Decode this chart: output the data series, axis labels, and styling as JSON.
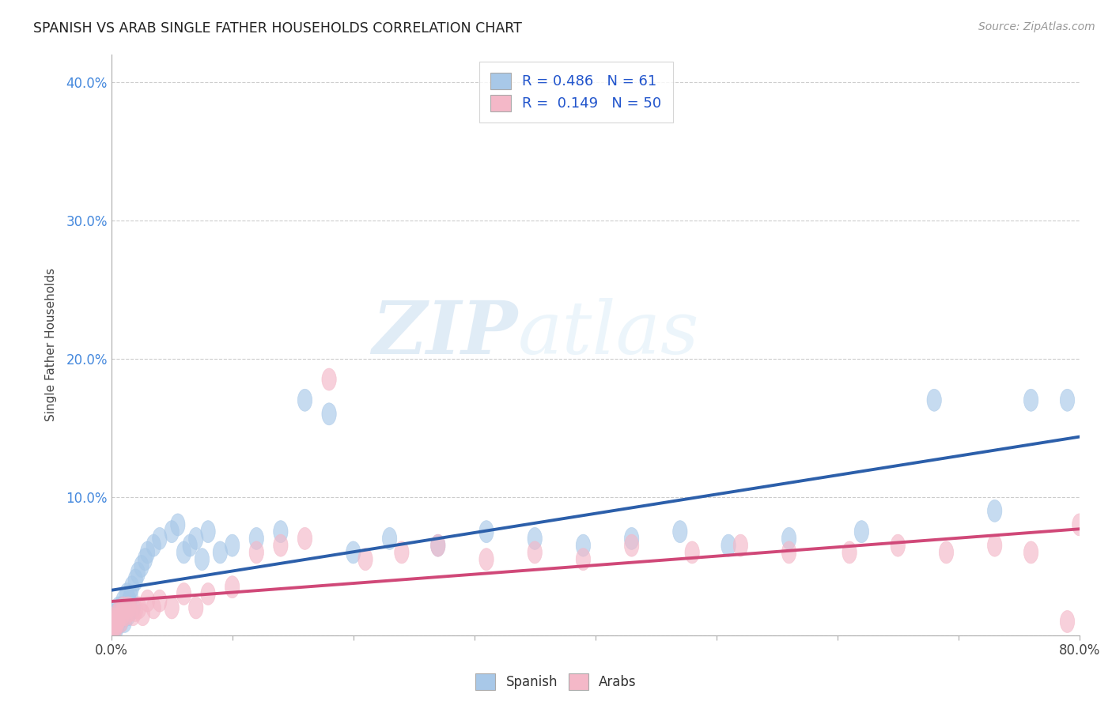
{
  "title": "SPANISH VS ARAB SINGLE FATHER HOUSEHOLDS CORRELATION CHART",
  "source": "Source: ZipAtlas.com",
  "ylabel": "Single Father Households",
  "xlim": [
    0.0,
    0.8
  ],
  "ylim": [
    0.0,
    0.42
  ],
  "spanish_R": 0.486,
  "spanish_N": 61,
  "arab_R": 0.149,
  "arab_N": 50,
  "blue_color": "#a8c8e8",
  "pink_color": "#f4b8c8",
  "blue_line_color": "#2c5faa",
  "pink_line_color": "#d04878",
  "watermark_zip": "ZIP",
  "watermark_atlas": "atlas",
  "spanish_x": [
    0.001,
    0.002,
    0.002,
    0.003,
    0.003,
    0.004,
    0.004,
    0.005,
    0.005,
    0.006,
    0.006,
    0.007,
    0.007,
    0.008,
    0.008,
    0.009,
    0.01,
    0.01,
    0.011,
    0.012,
    0.013,
    0.014,
    0.015,
    0.016,
    0.017,
    0.018,
    0.02,
    0.022,
    0.025,
    0.028,
    0.03,
    0.035,
    0.04,
    0.05,
    0.055,
    0.06,
    0.065,
    0.07,
    0.075,
    0.08,
    0.09,
    0.1,
    0.12,
    0.14,
    0.16,
    0.18,
    0.2,
    0.23,
    0.27,
    0.31,
    0.35,
    0.39,
    0.43,
    0.47,
    0.51,
    0.56,
    0.62,
    0.68,
    0.73,
    0.76,
    0.79
  ],
  "spanish_y": [
    0.005,
    0.005,
    0.01,
    0.008,
    0.015,
    0.005,
    0.01,
    0.008,
    0.015,
    0.01,
    0.02,
    0.012,
    0.018,
    0.01,
    0.015,
    0.02,
    0.015,
    0.025,
    0.01,
    0.02,
    0.03,
    0.015,
    0.025,
    0.028,
    0.035,
    0.02,
    0.04,
    0.045,
    0.05,
    0.055,
    0.06,
    0.065,
    0.07,
    0.075,
    0.08,
    0.06,
    0.065,
    0.07,
    0.055,
    0.075,
    0.06,
    0.065,
    0.07,
    0.075,
    0.17,
    0.16,
    0.06,
    0.07,
    0.065,
    0.075,
    0.07,
    0.065,
    0.07,
    0.075,
    0.065,
    0.07,
    0.075,
    0.17,
    0.09,
    0.17,
    0.17
  ],
  "arab_x": [
    0.001,
    0.002,
    0.002,
    0.003,
    0.003,
    0.004,
    0.005,
    0.005,
    0.006,
    0.007,
    0.008,
    0.009,
    0.01,
    0.012,
    0.014,
    0.016,
    0.018,
    0.02,
    0.023,
    0.026,
    0.03,
    0.035,
    0.04,
    0.05,
    0.06,
    0.07,
    0.08,
    0.1,
    0.12,
    0.14,
    0.16,
    0.18,
    0.21,
    0.24,
    0.27,
    0.31,
    0.35,
    0.39,
    0.43,
    0.48,
    0.52,
    0.56,
    0.61,
    0.65,
    0.69,
    0.73,
    0.76,
    0.79,
    0.8,
    0.81
  ],
  "arab_y": [
    0.005,
    0.008,
    0.01,
    0.005,
    0.012,
    0.008,
    0.015,
    0.01,
    0.012,
    0.018,
    0.01,
    0.015,
    0.02,
    0.015,
    0.02,
    0.018,
    0.015,
    0.018,
    0.02,
    0.015,
    0.025,
    0.02,
    0.025,
    0.02,
    0.03,
    0.02,
    0.03,
    0.035,
    0.06,
    0.065,
    0.07,
    0.185,
    0.055,
    0.06,
    0.065,
    0.055,
    0.06,
    0.055,
    0.065,
    0.06,
    0.065,
    0.06,
    0.06,
    0.065,
    0.06,
    0.065,
    0.06,
    0.01,
    0.08,
    0.085
  ]
}
